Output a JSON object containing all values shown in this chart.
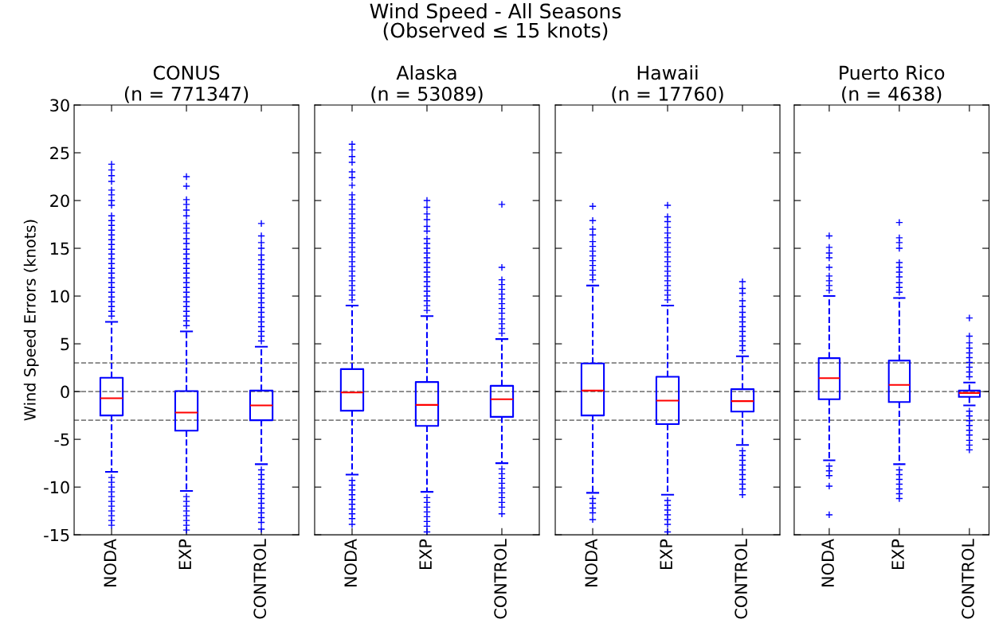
{
  "chart_data": [
    {
      "type": "box",
      "title": "CONUS\n(n = 771347)",
      "ylabel": "Wind Speed Errors (knots)",
      "annotations": [
        "Wind Speed - All Seasons\n(Observed ≤ 15 knots)"
      ],
      "categories": [
        "NODA",
        "EXP",
        "CONTROL"
      ],
      "ylim": [
        -15,
        30
      ],
      "yticks": [
        -15,
        -10,
        -5,
        0,
        5,
        10,
        15,
        20,
        25,
        30
      ],
      "grid": false,
      "line_style": "dashed",
      "marker": "cross",
      "ref_lines": [
        {
          "axis": "y",
          "value": 3,
          "color": "#808080",
          "line_style": "dashed"
        },
        {
          "axis": "y",
          "value": 0,
          "color": "#808080",
          "line_style": "dashed"
        },
        {
          "axis": "y",
          "value": -3,
          "color": "#808080",
          "line_style": "dashed"
        }
      ],
      "series": [
        {
          "color": "#0000ff",
          "boxes": [
            {
              "low": -8.4,
              "q1": -2.5,
              "median": -0.7,
              "q3": 1.45,
              "high": 7.3,
              "outliers": [
                7.9,
                8.4,
                8.9,
                9.4,
                9.9,
                10.4,
                10.9,
                11.4,
                11.9,
                12.4,
                12.9,
                13.4,
                13.9,
                14.4,
                14.9,
                15.4,
                15.9,
                16.4,
                16.9,
                17.4,
                17.9,
                18.4,
                19.5,
                20.0,
                20.6,
                21.1,
                22.0,
                22.6,
                23.2,
                23.8,
                -9.0,
                -9.5,
                -10.0,
                -10.5,
                -11.0,
                -11.5,
                -12.0,
                -12.5,
                -13.0,
                -13.5,
                -14.0
              ]
            },
            {
              "low": -10.4,
              "q1": -4.1,
              "median": -2.2,
              "q3": 0.05,
              "high": 6.3,
              "outliers": [
                6.9,
                7.4,
                7.9,
                8.4,
                8.9,
                9.4,
                9.9,
                10.4,
                10.9,
                11.4,
                11.9,
                12.4,
                12.9,
                13.4,
                13.9,
                14.4,
                14.9,
                15.5,
                16.0,
                16.6,
                17.1,
                17.6,
                18.4,
                19.0,
                19.6,
                20.1,
                21.5,
                22.5,
                -11.0,
                -11.5,
                -12.0,
                -12.5,
                -13.0,
                -13.5,
                -14.0,
                -14.5
              ]
            },
            {
              "low": -7.6,
              "q1": -3.0,
              "median": -1.45,
              "q3": 0.1,
              "high": 4.7,
              "outliers": [
                5.3,
                5.8,
                6.3,
                6.8,
                7.3,
                7.8,
                8.3,
                8.8,
                9.3,
                9.8,
                10.3,
                10.8,
                11.3,
                11.8,
                12.3,
                12.8,
                13.3,
                13.8,
                14.3,
                15.0,
                15.6,
                16.3,
                17.6,
                -8.2,
                -8.7,
                -9.2,
                -9.7,
                -10.2,
                -10.7,
                -11.2,
                -11.7,
                -12.2,
                -12.7,
                -13.2,
                -13.7,
                -14.4
              ]
            }
          ]
        }
      ]
    },
    {
      "type": "box",
      "title": "Alaska\n(n = 53089)",
      "categories": [
        "NODA",
        "EXP",
        "CONTROL"
      ],
      "ylim": [
        -15,
        30
      ],
      "yticks": [
        -15,
        -10,
        -5,
        0,
        5,
        10,
        15,
        20,
        25,
        30
      ],
      "tick_labels": "x",
      "grid": false,
      "line_style": "dashed",
      "marker": "cross",
      "ref_lines": [
        {
          "axis": "y",
          "value": 3,
          "color": "#808080",
          "line_style": "dashed"
        },
        {
          "axis": "y",
          "value": 0,
          "color": "#808080",
          "line_style": "dashed"
        },
        {
          "axis": "y",
          "value": -3,
          "color": "#808080",
          "line_style": "dashed"
        }
      ],
      "series": [
        {
          "color": "#0000ff",
          "boxes": [
            {
              "low": -8.7,
              "q1": -2.0,
              "median": -0.1,
              "q3": 2.35,
              "high": 9.0,
              "outliers": [
                9.6,
                10.1,
                10.6,
                11.1,
                11.6,
                12.1,
                12.6,
                13.1,
                13.6,
                14.1,
                14.6,
                15.1,
                15.6,
                16.1,
                16.6,
                17.1,
                17.6,
                18.1,
                18.6,
                19.1,
                19.6,
                20.1,
                20.6,
                21.6,
                22.4,
                23.0,
                24.0,
                24.6,
                25.3,
                25.9,
                -9.3,
                -9.8,
                -10.3,
                -10.8,
                -11.3,
                -11.8,
                -12.3,
                -12.8,
                -13.3,
                -13.9
              ]
            },
            {
              "low": -10.5,
              "q1": -3.6,
              "median": -1.4,
              "q3": 1.0,
              "high": 7.9,
              "outliers": [
                8.5,
                9.0,
                9.5,
                10.0,
                10.5,
                11.0,
                11.5,
                12.0,
                12.5,
                13.0,
                13.5,
                14.0,
                14.5,
                15.0,
                15.5,
                16.0,
                16.8,
                17.3,
                18.0,
                18.6,
                19.3,
                20.0,
                -11.1,
                -11.6,
                -12.1,
                -12.6,
                -13.1,
                -13.6,
                -14.1,
                -14.7
              ]
            },
            {
              "low": -7.5,
              "q1": -2.65,
              "median": -0.8,
              "q3": 0.6,
              "high": 5.5,
              "outliers": [
                6.1,
                6.6,
                7.1,
                7.6,
                8.2,
                8.7,
                9.2,
                9.7,
                10.2,
                10.7,
                11.2,
                11.7,
                13.0,
                19.6,
                -8.1,
                -8.6,
                -9.1,
                -9.6,
                -10.1,
                -10.6,
                -11.1,
                -11.6,
                -12.1,
                -12.8
              ]
            }
          ]
        }
      ]
    },
    {
      "type": "box",
      "title": "Hawaii\n(n = 17760)",
      "categories": [
        "NODA",
        "EXP",
        "CONTROL"
      ],
      "ylim": [
        -15,
        30
      ],
      "yticks": [
        -15,
        -10,
        -5,
        0,
        5,
        10,
        15,
        20,
        25,
        30
      ],
      "tick_labels": "x",
      "grid": false,
      "line_style": "dashed",
      "marker": "cross",
      "ref_lines": [
        {
          "axis": "y",
          "value": 3,
          "color": "#808080",
          "line_style": "dashed"
        },
        {
          "axis": "y",
          "value": 0,
          "color": "#808080",
          "line_style": "dashed"
        },
        {
          "axis": "y",
          "value": -3,
          "color": "#808080",
          "line_style": "dashed"
        }
      ],
      "series": [
        {
          "color": "#0000ff",
          "boxes": [
            {
              "low": -10.6,
              "q1": -2.5,
              "median": 0.1,
              "q3": 2.95,
              "high": 11.1,
              "outliers": [
                11.7,
                12.2,
                12.7,
                13.2,
                13.7,
                14.2,
                14.7,
                15.2,
                15.7,
                16.4,
                17.0,
                17.9,
                19.4,
                -11.2,
                -11.7,
                -12.2,
                -12.7,
                -13.4
              ]
            },
            {
              "low": -10.8,
              "q1": -3.4,
              "median": -0.95,
              "q3": 1.55,
              "high": 9.0,
              "outliers": [
                9.6,
                10.1,
                10.6,
                11.1,
                11.6,
                12.1,
                12.6,
                13.1,
                13.6,
                14.1,
                14.6,
                15.1,
                15.6,
                16.1,
                16.6,
                17.2,
                17.8,
                18.3,
                19.5,
                -11.4,
                -11.9,
                -12.4,
                -12.9,
                -13.4,
                -13.9,
                -14.7
              ]
            },
            {
              "low": -5.6,
              "q1": -2.1,
              "median": -1.0,
              "q3": 0.25,
              "high": 3.7,
              "outliers": [
                4.3,
                4.8,
                5.3,
                5.8,
                6.3,
                6.8,
                7.3,
                7.8,
                8.3,
                8.9,
                9.5,
                10.3,
                10.8,
                11.5,
                -6.2,
                -6.7,
                -7.2,
                -7.7,
                -8.2,
                -8.7,
                -9.2,
                -9.7,
                -10.2,
                -10.8
              ]
            }
          ]
        }
      ]
    },
    {
      "type": "box",
      "title": "Puerto Rico\n(n = 4638)",
      "categories": [
        "NODA",
        "EXP",
        "CONTROL"
      ],
      "ylim": [
        -15,
        30
      ],
      "yticks": [
        -15,
        -10,
        -5,
        0,
        5,
        10,
        15,
        20,
        25,
        30
      ],
      "tick_labels": "x",
      "grid": false,
      "line_style": "dashed",
      "marker": "cross",
      "ref_lines": [
        {
          "axis": "y",
          "value": 3,
          "color": "#808080",
          "line_style": "dashed"
        },
        {
          "axis": "y",
          "value": 0,
          "color": "#808080",
          "line_style": "dashed"
        },
        {
          "axis": "y",
          "value": -3,
          "color": "#808080",
          "line_style": "dashed"
        }
      ],
      "series": [
        {
          "color": "#0000ff",
          "boxes": [
            {
              "low": -7.2,
              "q1": -0.8,
              "median": 1.4,
              "q3": 3.5,
              "high": 10.0,
              "outliers": [
                10.6,
                11.1,
                11.6,
                12.1,
                13.0,
                14.0,
                14.5,
                15.1,
                16.3,
                -7.8,
                -8.3,
                -8.8,
                -9.9,
                -12.9
              ]
            },
            {
              "low": -7.6,
              "q1": -1.1,
              "median": 0.7,
              "q3": 3.25,
              "high": 9.8,
              "outliers": [
                10.4,
                10.9,
                11.4,
                12.0,
                12.5,
                13.0,
                13.5,
                15.0,
                15.6,
                16.1,
                17.7,
                -8.2,
                -8.7,
                -9.2,
                -9.7,
                -10.2,
                -10.7,
                -11.2
              ]
            },
            {
              "low": -1.45,
              "q1": -0.55,
              "median": -0.15,
              "q3": 0.1,
              "high": 0.95,
              "outliers": [
                1.55,
                2.05,
                2.55,
                3.05,
                3.55,
                4.05,
                4.55,
                5.1,
                5.8,
                7.7,
                -2.05,
                -2.55,
                -3.05,
                -3.55,
                -4.05,
                -4.55,
                -5.1,
                -5.6,
                -6.1
              ]
            }
          ]
        }
      ]
    }
  ]
}
